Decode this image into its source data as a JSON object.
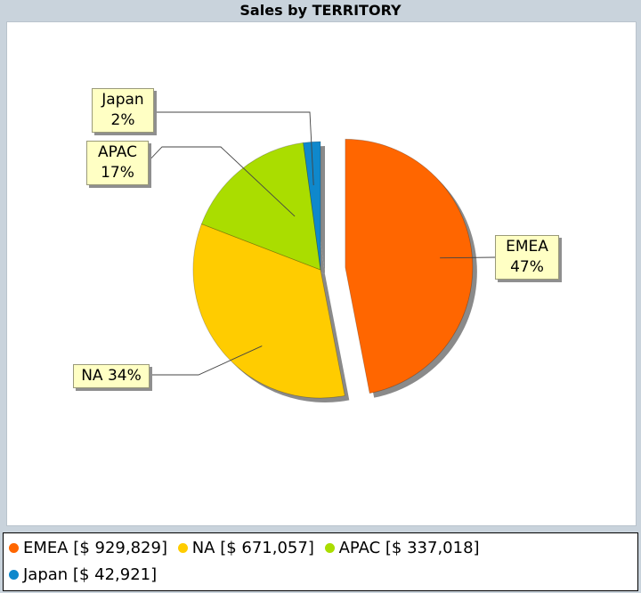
{
  "chart_data": {
    "type": "pie",
    "title": "Sales by TERRITORY",
    "slices": [
      {
        "name": "EMEA",
        "value": 929829,
        "percent_label": "47%",
        "color": "#ff6600",
        "exploded": true
      },
      {
        "name": "NA",
        "value": 671057,
        "percent_label": "34%",
        "color": "#ffcc00",
        "exploded": false
      },
      {
        "name": "APAC",
        "value": 337018,
        "percent_label": "17%",
        "color": "#aadd00",
        "exploded": false
      },
      {
        "name": "Japan",
        "value": 42921,
        "percent_label": "2%",
        "color": "#0f88cc",
        "exploded": false
      }
    ],
    "callouts": {
      "emea": {
        "line1": "EMEA",
        "line2": "47%"
      },
      "na": {
        "line1": "NA 34%"
      },
      "apac": {
        "line1": "APAC",
        "line2": "17%"
      },
      "japan": {
        "line1": "Japan",
        "line2": "2%"
      }
    },
    "legend": {
      "placement": "bottom",
      "entries": [
        {
          "label": "EMEA [$ 929,829]",
          "color": "#ff6600"
        },
        {
          "label": "NA [$ 671,057]",
          "color": "#ffcc00"
        },
        {
          "label": "APAC [$ 337,018]",
          "color": "#aadd00"
        },
        {
          "label": "Japan [$ 42,921]",
          "color": "#0f88cc"
        }
      ]
    }
  }
}
